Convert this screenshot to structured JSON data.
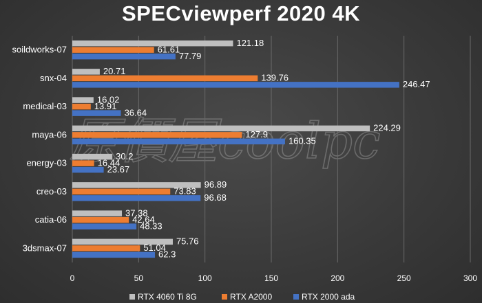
{
  "chart_data": {
    "type": "bar",
    "orientation": "horizontal",
    "title": "SPECviewperf 2020 4K",
    "categories": [
      "soildworks-07",
      "snx-04",
      "medical-03",
      "maya-06",
      "energy-03",
      "creo-03",
      "catia-06",
      "3dsmax-07"
    ],
    "series": [
      {
        "name": "RTX 4060 Ti 8G",
        "color": "#bfbfbf",
        "values": [
          121.18,
          20.71,
          16.02,
          224.29,
          30.2,
          96.89,
          37.38,
          75.76
        ]
      },
      {
        "name": "RTX A2000",
        "color": "#ed7d31",
        "values": [
          61.61,
          139.76,
          13.91,
          127.9,
          16.44,
          73.83,
          42.64,
          51.04
        ]
      },
      {
        "name": "RTX 2000 ada",
        "color": "#4472c4",
        "values": [
          77.79,
          246.47,
          36.64,
          160.35,
          23.67,
          96.68,
          48.33,
          62.3
        ]
      }
    ],
    "value_labels": [
      [
        "121.18",
        "20.71",
        "16.02",
        "224.29",
        "30.2",
        "96.89",
        "37.38",
        "75.76"
      ],
      [
        "61.61",
        "139.76",
        "13.91",
        "127.9",
        "16.44",
        "73.83",
        "42.64",
        "51.04"
      ],
      [
        "77.79",
        "246.47",
        "36.64",
        "160.35",
        "23.67",
        "96.68",
        "48.33",
        "62.3"
      ]
    ],
    "xlim": [
      0,
      300
    ],
    "xticks": [
      0,
      50,
      100,
      150,
      200,
      250,
      300
    ],
    "grid": true,
    "legend_position": "bottom"
  },
  "watermark": {
    "text": "原價屋coolpc"
  }
}
